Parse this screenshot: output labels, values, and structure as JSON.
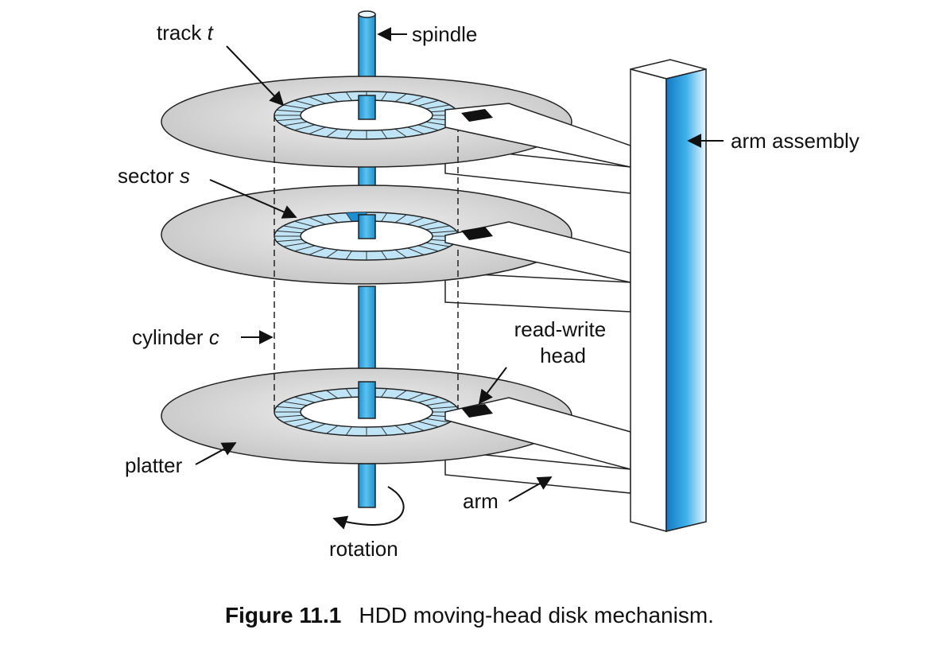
{
  "labels": {
    "track": {
      "text": "track ",
      "var": "t"
    },
    "spindle": "spindle",
    "arm_assembly": "arm assembly",
    "sector": {
      "text": "sector ",
      "var": "s"
    },
    "cylinder": {
      "text": "cylinder ",
      "var": "c"
    },
    "read_write_head": [
      "read-write",
      "head"
    ],
    "platter": "platter",
    "arm": "arm",
    "rotation": "rotation"
  },
  "caption": {
    "number": "Figure 11.1",
    "text": "HDD moving-head disk mechanism."
  },
  "colors": {
    "platter": "#d2d2d2",
    "track_ring": "#bfe4f5",
    "spindle": "#29a3dc",
    "sector_highlight": "#1d8fd0",
    "head": "#111111"
  }
}
